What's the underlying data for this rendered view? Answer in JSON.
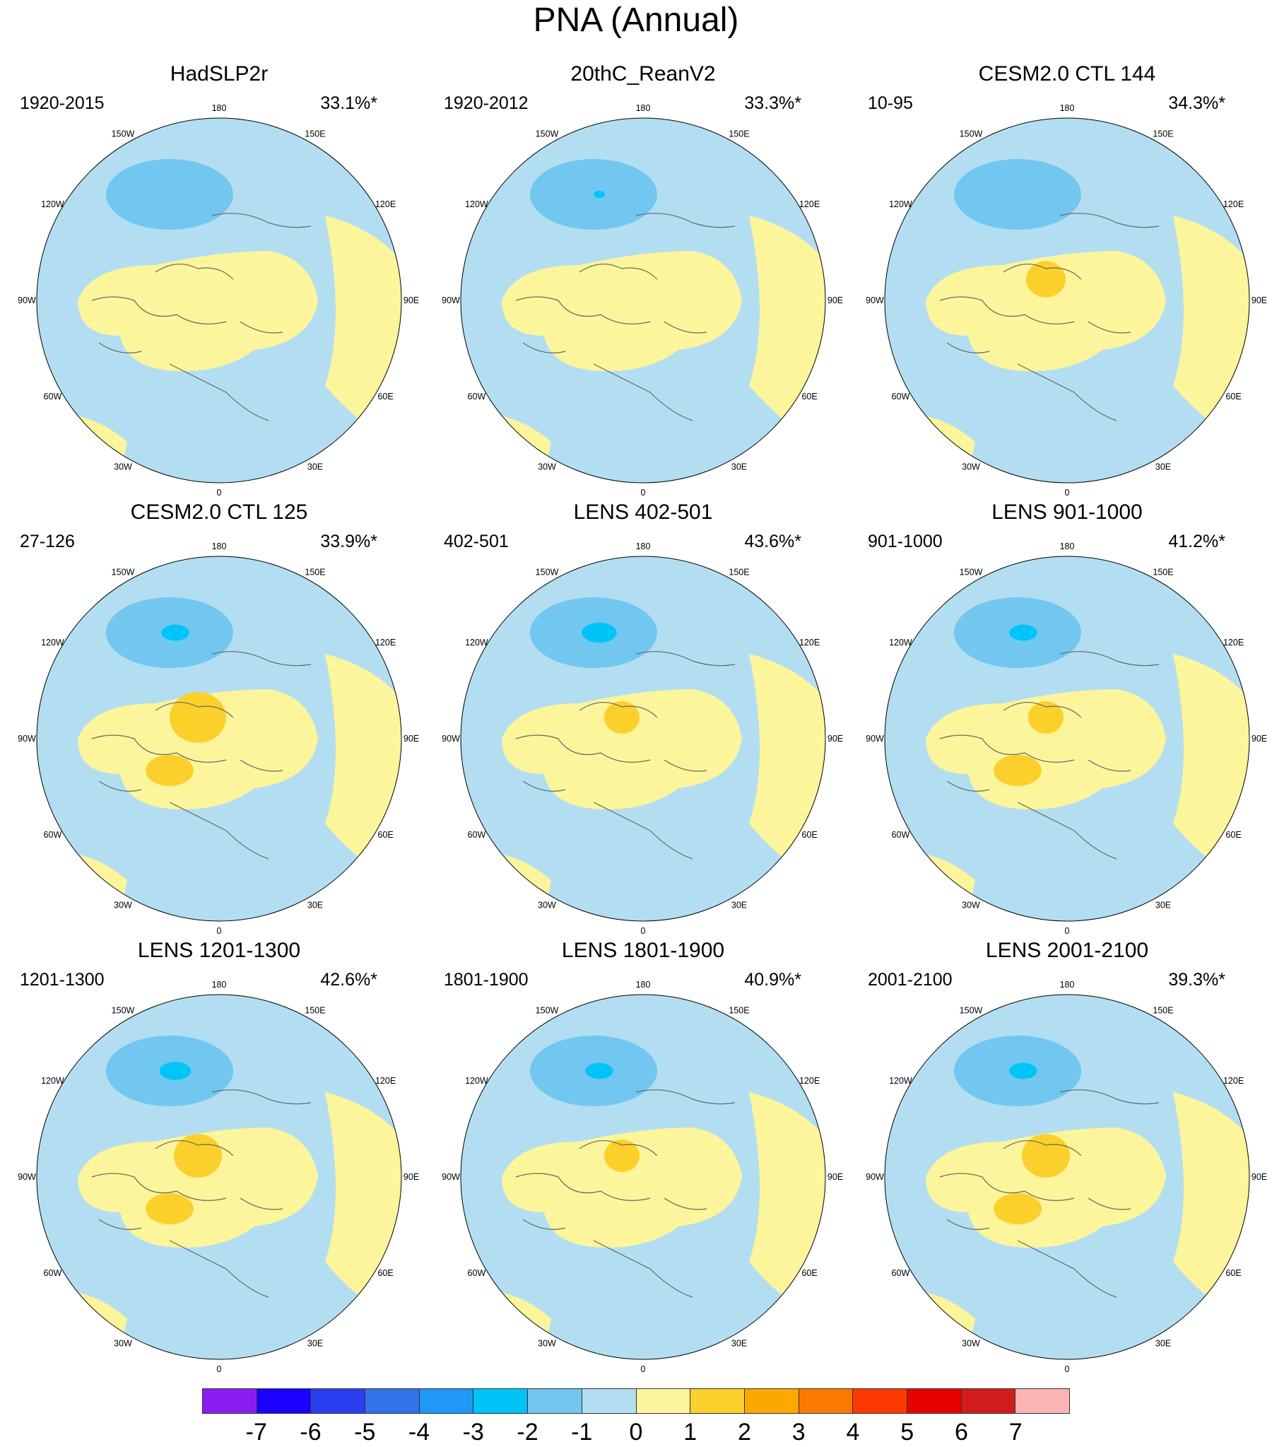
{
  "title": "PNA (Annual)",
  "panels": [
    {
      "title": "HadSLP2r",
      "period": "1920-2015",
      "variance": "33.1%*",
      "neg_core": 0,
      "pos_core": 0,
      "second_pos": 0
    },
    {
      "title": "20thC_ReanV2",
      "period": "1920-2012",
      "variance": "33.3%*",
      "neg_core": 0.15,
      "pos_core": 0,
      "second_pos": 0
    },
    {
      "title": "CESM2.0 CTL 144",
      "period": "10-95",
      "variance": "34.3%*",
      "neg_core": 0,
      "pos_core": 0.6,
      "second_pos": 0
    },
    {
      "title": "CESM2.0 CTL 125",
      "period": "27-126",
      "variance": "33.9%*",
      "neg_core": 0.6,
      "pos_core": 1.0,
      "second_pos": 1
    },
    {
      "title": "LENS 402-501",
      "period": "402-501",
      "variance": "43.6%*",
      "neg_core": 0.8,
      "pos_core": 0.5,
      "second_pos": 0
    },
    {
      "title": "LENS 901-1000",
      "period": "901-1000",
      "variance": "41.2%*",
      "neg_core": 0.6,
      "pos_core": 0.5,
      "second_pos": 1
    },
    {
      "title": "LENS 1201-1300",
      "period": "1201-1300",
      "variance": "42.6%*",
      "neg_core": 0.7,
      "pos_core": 0.8,
      "second_pos": 1
    },
    {
      "title": "LENS 1801-1900",
      "period": "1801-1900",
      "variance": "40.9%*",
      "neg_core": 0.6,
      "pos_core": 0.5,
      "second_pos": 0
    },
    {
      "title": "LENS 2001-2100",
      "period": "2001-2100",
      "variance": "39.3%*",
      "neg_core": 0.6,
      "pos_core": 0.8,
      "second_pos": 1
    }
  ],
  "lon_labels": [
    "180",
    "150E",
    "120E",
    "90E",
    "60E",
    "30E",
    "0",
    "30W",
    "60W",
    "90W",
    "120W",
    "150W"
  ],
  "colorbar": {
    "labels": [
      "-7",
      "-6",
      "-5",
      "-4",
      "-3",
      "-2",
      "-1",
      "0",
      "1",
      "2",
      "3",
      "4",
      "5",
      "6",
      "7"
    ],
    "colors": [
      "#8a1ef2",
      "#1a00ff",
      "#2b3ff0",
      "#3073ea",
      "#1f98f7",
      "#00c3f8",
      "#72c7f0",
      "#b3def2",
      "#fcf59b",
      "#fcd02b",
      "#fca800",
      "#fc7a00",
      "#fc3a00",
      "#e80000",
      "#d11c1c",
      "#fcb3b3"
    ]
  },
  "palette": {
    "neg_weak": "#b3def2",
    "neg_mid": "#72c7f0",
    "neg_strong": "#00c3f8",
    "pos_weak": "#fcf59b",
    "pos_mid": "#fcd02b",
    "coast": "#666666"
  }
}
